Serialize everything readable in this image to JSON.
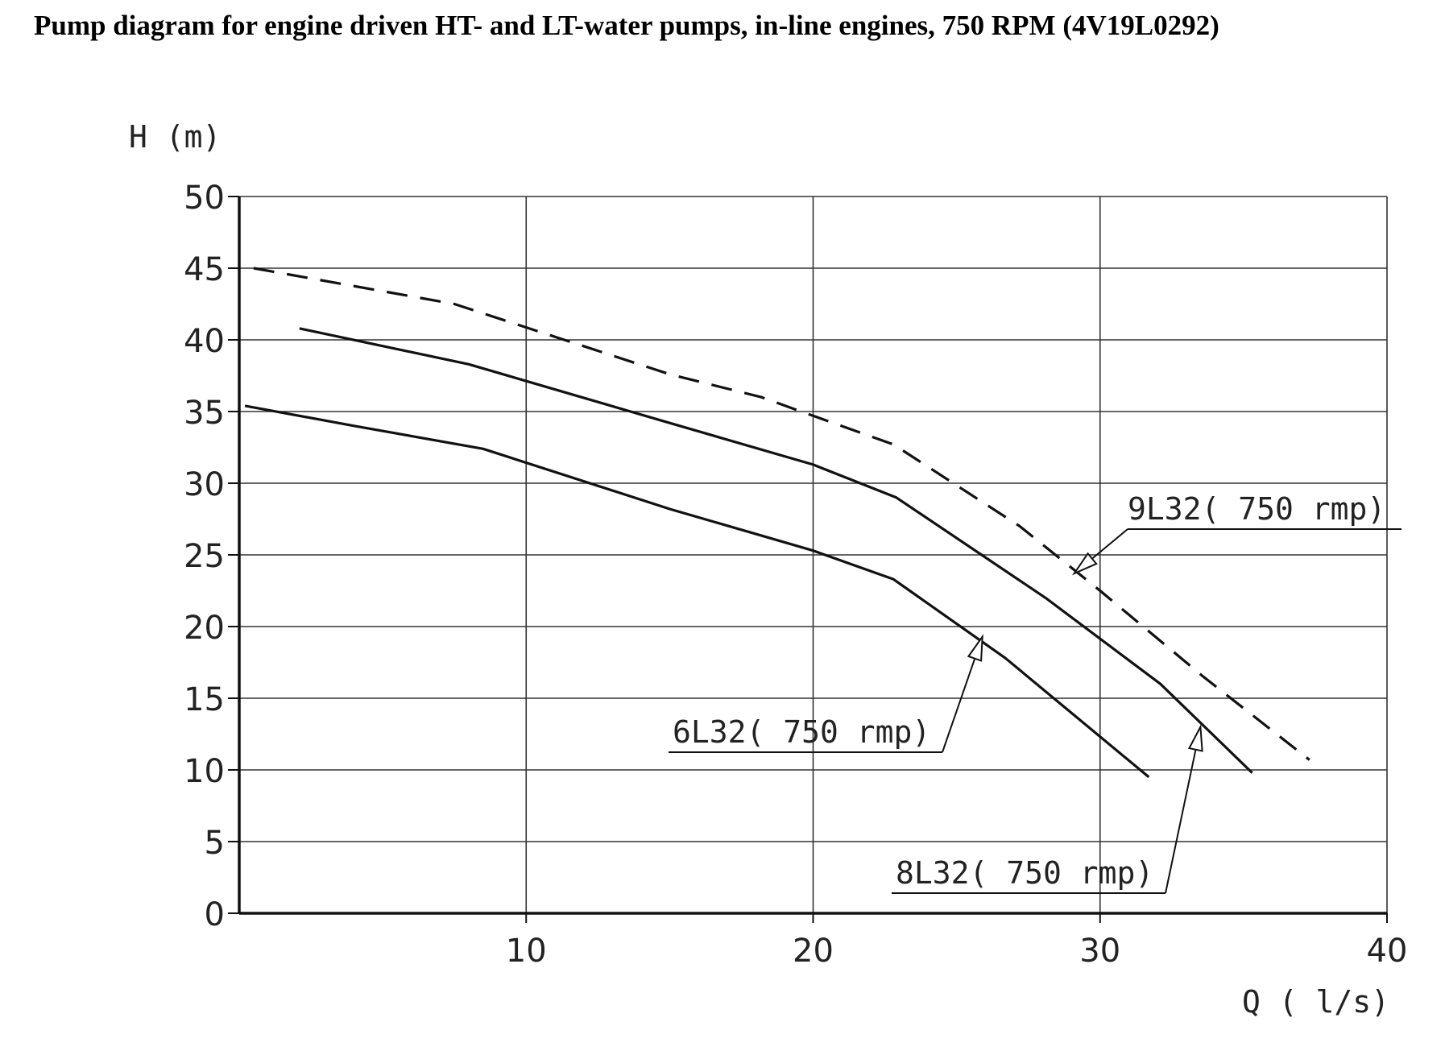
{
  "title": "Pump diagram for engine driven HT- and LT-water pumps, in-line engines, 750 RPM (4V19L0292)",
  "chart_data": {
    "type": "line",
    "xlabel": "Q ( l/s)",
    "ylabel": "H (m)",
    "xlim": [
      0,
      40
    ],
    "ylim": [
      0,
      50
    ],
    "x_ticks": [
      "10",
      "20",
      "30",
      "40"
    ],
    "y_ticks": [
      "0",
      "5",
      "10",
      "15",
      "20",
      "25",
      "30",
      "35",
      "40",
      "45",
      "50"
    ],
    "grid": true,
    "series": [
      {
        "name": "6L32( 750 rmp)",
        "style": "solid",
        "points": [
          [
            0.2,
            35.4
          ],
          [
            4,
            34.0
          ],
          [
            8.5,
            32.4
          ],
          [
            15,
            28.2
          ],
          [
            20,
            25.3
          ],
          [
            22.8,
            23.3
          ],
          [
            26.7,
            17.8
          ],
          [
            31.7,
            9.5
          ]
        ]
      },
      {
        "name": "8L32( 750 rmp)",
        "style": "solid",
        "points": [
          [
            2.1,
            40.8
          ],
          [
            8,
            38.3
          ],
          [
            15,
            34.2
          ],
          [
            20,
            31.3
          ],
          [
            22.9,
            29.0
          ],
          [
            28.1,
            22.0
          ],
          [
            32.1,
            16.0
          ],
          [
            35.3,
            9.8
          ]
        ]
      },
      {
        "name": "9L32( 750 rmp)",
        "style": "dashed",
        "points": [
          [
            0.5,
            45.0
          ],
          [
            7.5,
            42.5
          ],
          [
            15,
            37.6
          ],
          [
            18.2,
            36.0
          ],
          [
            20,
            34.7
          ],
          [
            22.8,
            32.7
          ],
          [
            27.2,
            27.0
          ],
          [
            30,
            22.5
          ],
          [
            33.6,
            16.5
          ],
          [
            37.3,
            10.7
          ]
        ]
      }
    ],
    "annotations": [
      {
        "text": "6L32( 750 rmp)",
        "series": "6L32( 750 rmp)",
        "points_to": [
          25.9,
          19.3
        ]
      },
      {
        "text": "8L32( 750 rmp)",
        "series": "8L32( 750 rmp)",
        "points_to": [
          33.5,
          13.0
        ]
      },
      {
        "text": "9L32( 750 rmp)",
        "series": "9L32( 750 rmp)",
        "points_to": [
          29.1,
          23.7
        ]
      }
    ]
  }
}
